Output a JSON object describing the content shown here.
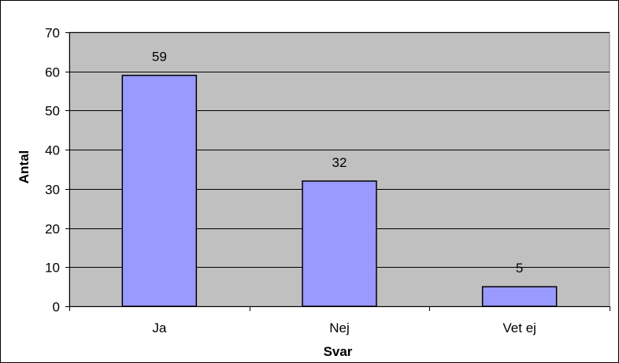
{
  "chart_data": {
    "type": "bar",
    "categories": [
      "Ja",
      "Nej",
      "Vet ej"
    ],
    "values": [
      59,
      32,
      5
    ],
    "data_labels": [
      "59",
      "32",
      "5"
    ],
    "xlabel": "Svar",
    "ylabel": "Antal",
    "ylim": [
      0,
      70
    ],
    "yticks": [
      0,
      10,
      20,
      30,
      40,
      50,
      60,
      70
    ],
    "ytick_labels": [
      "0",
      "10",
      "20",
      "30",
      "40",
      "50",
      "60",
      "70"
    ],
    "grid": true,
    "legend": "none",
    "colors": {
      "bar_fill": "#9999ff",
      "bar_stroke": "#000000",
      "plot_background": "#c0c0c0",
      "gridline": "#000000"
    }
  }
}
